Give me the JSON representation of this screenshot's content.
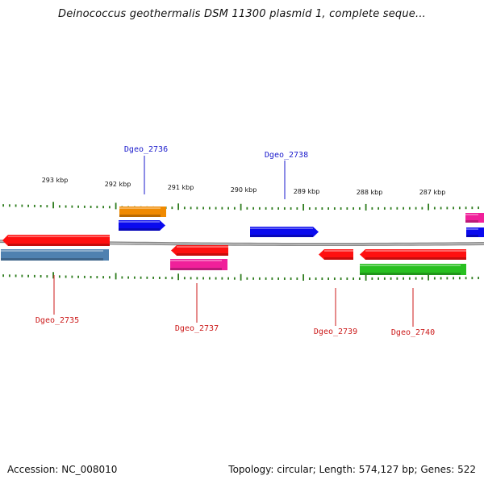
{
  "title": "Deinococcus geothermalis DSM 11300 plasmid 1, complete seque...",
  "footer": {
    "accession": "Accession: NC_008010",
    "summary": "Topology: circular; Length: 574,127 bp; Genes: 522"
  },
  "colors": {
    "backbone": "#8a8a8a",
    "tick": "#2f7d1f",
    "forward_label": "#1a1acc",
    "reverse_label": "#cc1a1a",
    "red": "#ff1010",
    "blue": "#0a0aee",
    "steelblue": "#4f81b0",
    "orange": "#f08a00",
    "magenta": "#f0209a",
    "green": "#28c020"
  },
  "axis": {
    "unit": "kbp",
    "major_ticks": [
      {
        "label": "293 kbp"
      },
      {
        "label": "292 kbp"
      },
      {
        "label": "291 kbp"
      },
      {
        "label": "290 kbp"
      },
      {
        "label": "289 kbp"
      },
      {
        "label": "288 kbp"
      },
      {
        "label": "287 kbp"
      }
    ]
  },
  "features": {
    "forward": [
      {
        "color": "orange"
      },
      {
        "color": "blue",
        "label": "Dgeo_2736"
      },
      {
        "color": "blue",
        "label": "Dgeo_2738"
      },
      {
        "color": "magenta"
      },
      {
        "color": "blue"
      }
    ],
    "reverse": [
      {
        "color": "red",
        "label": "Dgeo_2735"
      },
      {
        "color": "steelblue"
      },
      {
        "color": "red"
      },
      {
        "color": "magenta",
        "label": "Dgeo_2737"
      },
      {
        "color": "red",
        "label": "Dgeo_2739"
      },
      {
        "color": "red"
      },
      {
        "color": "green",
        "label": "Dgeo_2740"
      }
    ]
  }
}
